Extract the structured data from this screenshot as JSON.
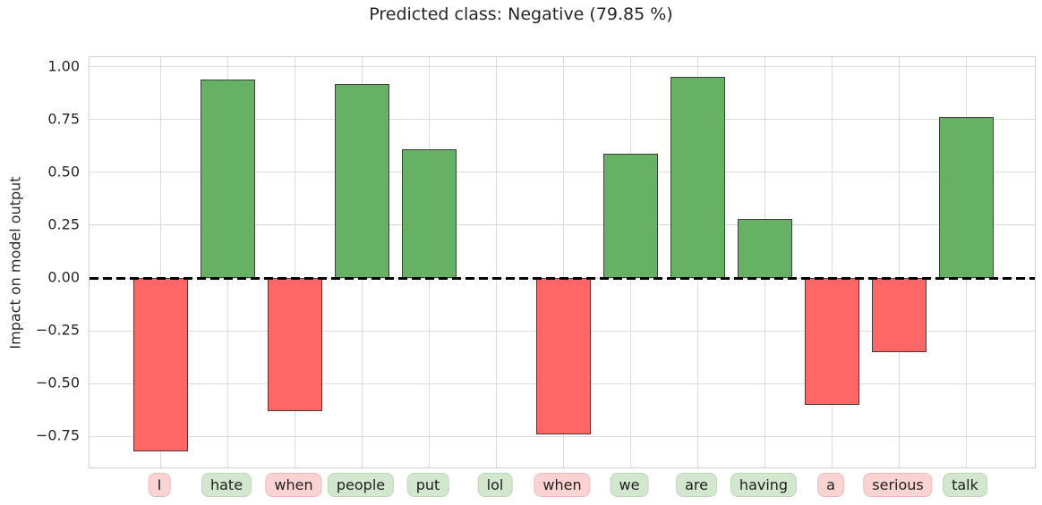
{
  "chart_data": {
    "type": "bar",
    "title": "Predicted class: Negative (79.85 %)",
    "ylabel": "Impact on model output",
    "xlabel": "",
    "categories": [
      "I",
      "hate",
      "when",
      "people",
      "put",
      "lol",
      "when",
      "we",
      "are",
      "having",
      "a",
      "serious",
      "talk"
    ],
    "values": [
      -0.82,
      0.94,
      -0.63,
      0.92,
      0.61,
      0.0,
      -0.74,
      0.59,
      0.95,
      0.28,
      -0.6,
      -0.35,
      0.76
    ],
    "category_sentiment": [
      "negative",
      "positive",
      "negative",
      "positive",
      "positive",
      "positive",
      "negative",
      "positive",
      "positive",
      "positive",
      "negative",
      "negative",
      "positive"
    ],
    "yticks": [
      "1.00",
      "0.75",
      "0.50",
      "0.25",
      "0.00",
      "−0.25",
      "−0.50",
      "−0.75"
    ],
    "ytick_values": [
      1.0,
      0.75,
      0.5,
      0.25,
      0.0,
      -0.25,
      -0.5,
      -0.75
    ],
    "ylim": [
      -0.905,
      1.045
    ],
    "grid": true,
    "legend": false,
    "zero_line": "dashed-black",
    "colors": {
      "bar_positive": "#66b164",
      "bar_negative": "#ff6666",
      "bar_edge": "#3f3f3f",
      "chip_positive_bg": "#d2e7ce",
      "chip_positive_border": "#bcd9b6",
      "chip_negative_bg": "#fad3d2",
      "chip_negative_border": "#f0bcba",
      "grid": "#dcdcdc",
      "text": "#262626"
    }
  }
}
